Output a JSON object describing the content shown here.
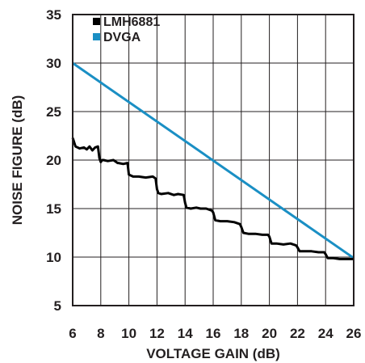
{
  "chart_data": {
    "type": "line",
    "title": "",
    "xlabel": "VOLTAGE GAIN (dB)",
    "ylabel": "NOISE FIGURE (dB)",
    "xlim": [
      6,
      26
    ],
    "ylim": [
      5,
      35
    ],
    "xticks": [
      "6",
      "8",
      "10",
      "12",
      "14",
      "16",
      "18",
      "20",
      "22",
      "24",
      "26"
    ],
    "yticks": [
      "5",
      "10",
      "15",
      "20",
      "25",
      "30",
      "35"
    ],
    "grid": true,
    "legend_position": "top-left",
    "series": [
      {
        "name": "LMH6881",
        "color": "#000000",
        "x": [
          6,
          6.2,
          6.5,
          6.8,
          7.0,
          7.2,
          7.4,
          7.6,
          7.8,
          7.9,
          8.0,
          8.1,
          8.2,
          8.5,
          8.9,
          9.2,
          9.25,
          9.6,
          9.9,
          10.0,
          10.3,
          10.7,
          11.2,
          11.7,
          11.9,
          12.0,
          12.1,
          12.3,
          12.8,
          13.2,
          13.5,
          13.9,
          14.0,
          14.1,
          14.4,
          14.8,
          15.1,
          15.5,
          15.9,
          16.0,
          16.15,
          16.5,
          17.0,
          17.5,
          17.9,
          18.0,
          18.15,
          18.5,
          19.0,
          19.5,
          19.9,
          20.0,
          20.15,
          20.5,
          21.0,
          21.5,
          21.9,
          22.0,
          22.15,
          22.5,
          23.0,
          23.5,
          23.9,
          24.0,
          24.15,
          24.5,
          25.0,
          25.5,
          26.0
        ],
        "y": [
          22.3,
          21.4,
          21.2,
          21.3,
          21.1,
          21.4,
          21.0,
          21.3,
          21.4,
          20.2,
          19.8,
          20.0,
          20.0,
          19.9,
          20.0,
          19.7,
          19.7,
          19.6,
          19.7,
          18.5,
          18.3,
          18.3,
          18.2,
          18.3,
          18.1,
          17.0,
          16.6,
          16.5,
          16.6,
          16.4,
          16.5,
          16.4,
          15.6,
          15.1,
          15.0,
          15.1,
          15.0,
          15.0,
          14.8,
          14.6,
          13.8,
          13.7,
          13.7,
          13.6,
          13.4,
          13.1,
          12.5,
          12.4,
          12.4,
          12.3,
          12.3,
          12.1,
          11.4,
          11.4,
          11.3,
          11.4,
          11.2,
          11.0,
          10.6,
          10.6,
          10.6,
          10.5,
          10.5,
          10.3,
          9.9,
          9.9,
          9.8,
          9.8,
          9.8
        ]
      },
      {
        "name": "DVGA",
        "color": "#1a8fc4",
        "x": [
          6,
          26
        ],
        "y": [
          30,
          9.9
        ]
      }
    ]
  }
}
